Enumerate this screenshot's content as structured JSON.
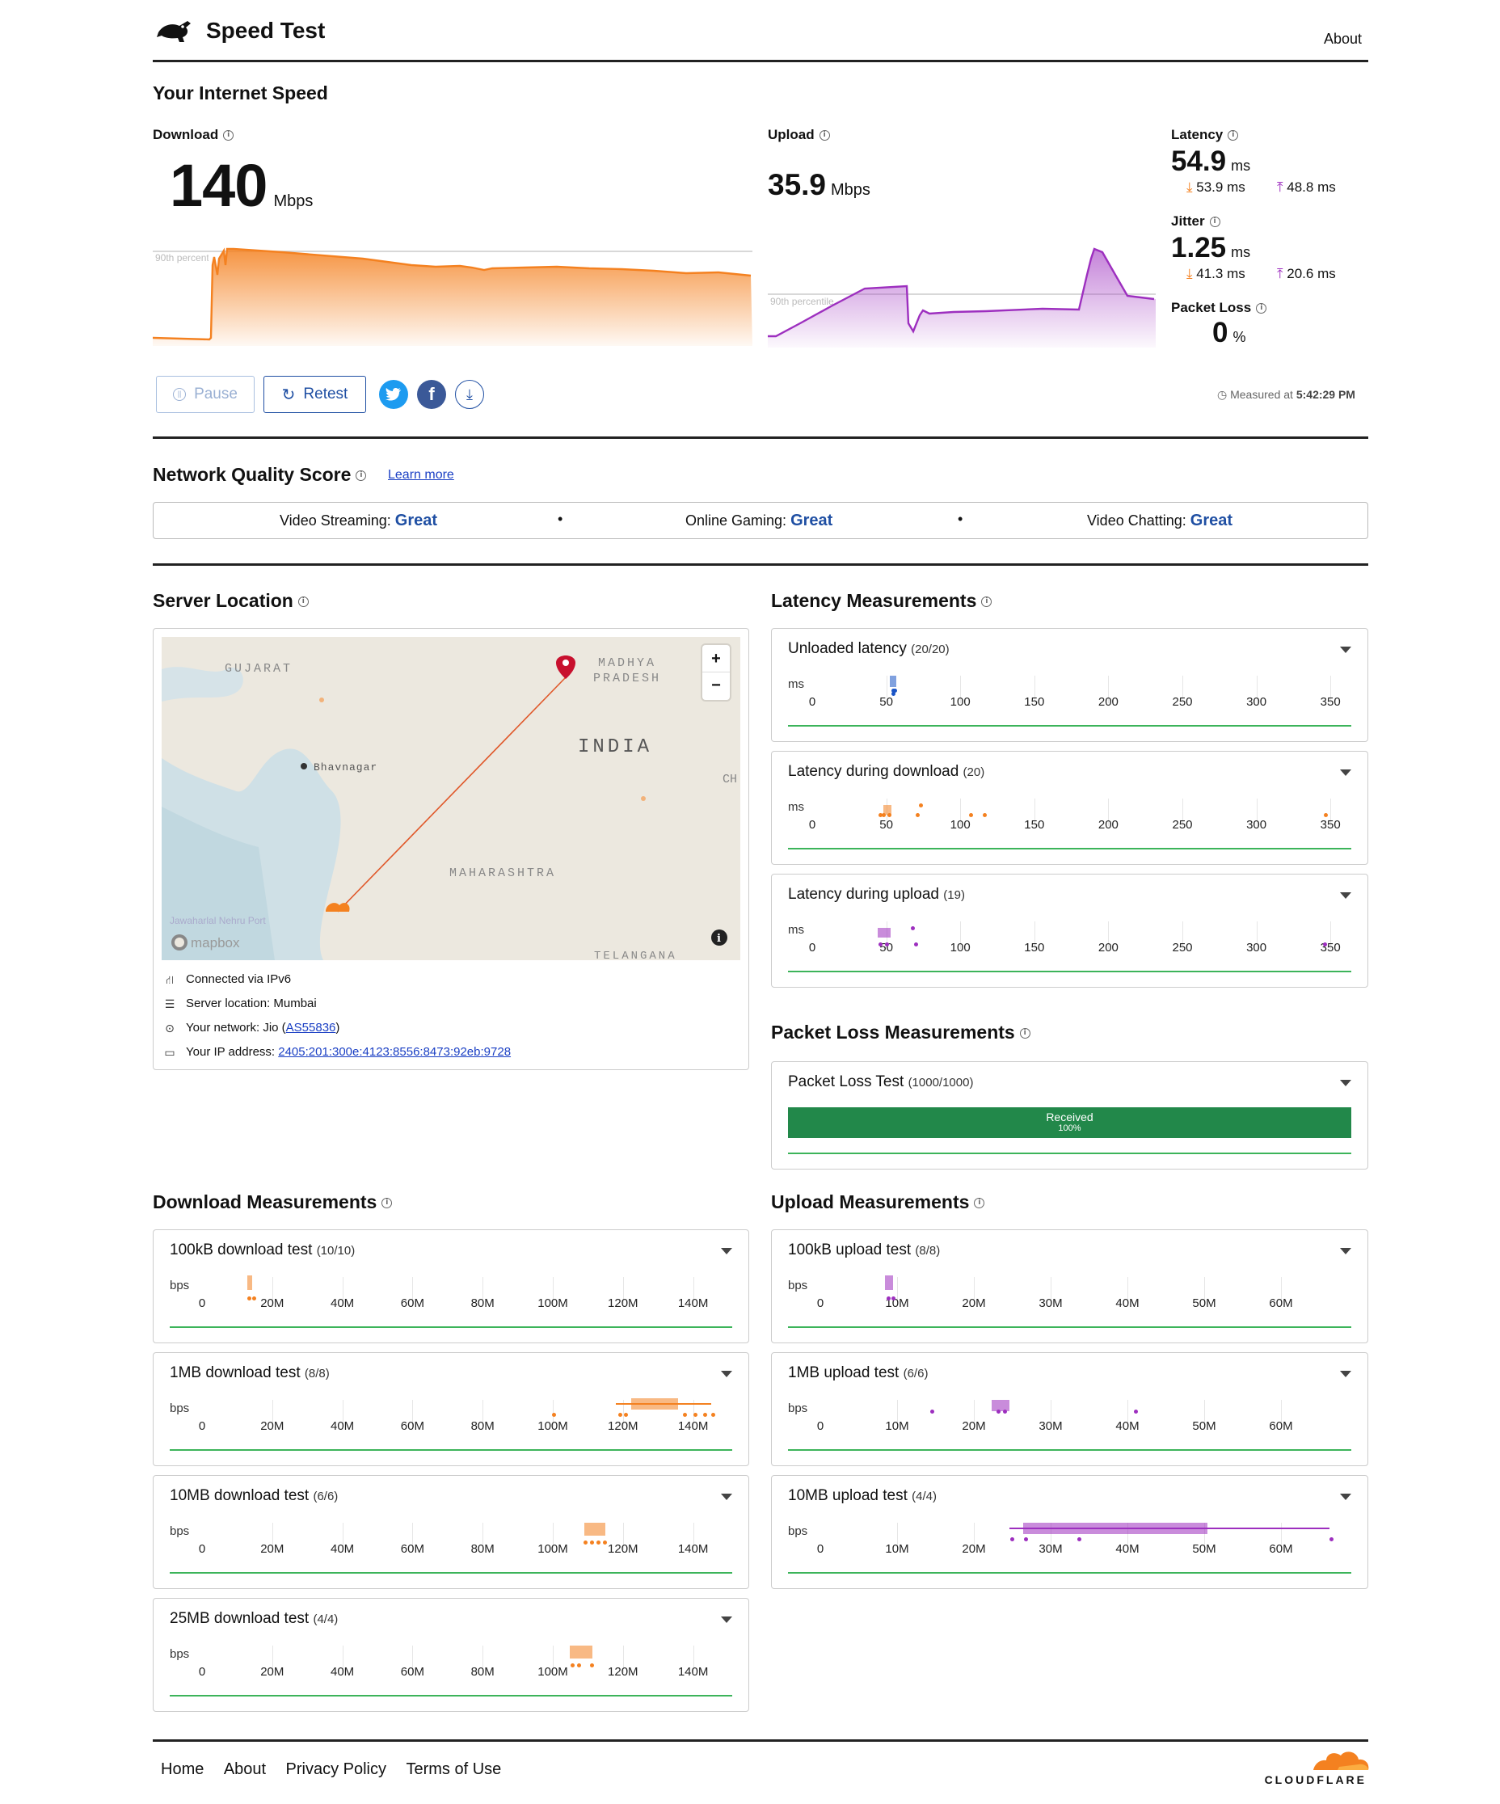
{
  "header": {
    "title": "Speed Test",
    "about": "About"
  },
  "speed": {
    "heading": "Your Internet Speed",
    "download": {
      "label": "Download",
      "value": "140",
      "unit": "Mbps",
      "percentile": "90th percentile"
    },
    "upload": {
      "label": "Upload",
      "value": "35.9",
      "unit": "Mbps",
      "percentile": "90th percentile"
    },
    "latency": {
      "label": "Latency",
      "value": "54.9",
      "unit": "ms",
      "down": "53.9",
      "down_unit": "ms",
      "up": "48.8",
      "up_unit": "ms"
    },
    "jitter": {
      "label": "Jitter",
      "value": "1.25",
      "unit": "ms",
      "down": "41.3",
      "down_unit": "ms",
      "up": "20.6",
      "up_unit": "ms"
    },
    "packet_loss": {
      "label": "Packet Loss",
      "value": "0",
      "unit": "%"
    },
    "measured_label": "Measured at",
    "measured_time": "5:42:29 PM",
    "buttons": {
      "pause": "Pause",
      "retest": "Retest"
    }
  },
  "nqs": {
    "heading": "Network Quality Score",
    "learn_more": "Learn more",
    "items": [
      {
        "label": "Video Streaming:",
        "value": "Great"
      },
      {
        "label": "Online Gaming:",
        "value": "Great"
      },
      {
        "label": "Video Chatting:",
        "value": "Great"
      }
    ]
  },
  "server": {
    "heading": "Server Location",
    "map_labels": {
      "gujarat": "GUJARAT",
      "madhya": "MADHYA",
      "pradesh": "PRADESH",
      "india": "INDIA",
      "bhavnagar": "Bhavnagar",
      "maharashtra": "MAHARASHTRA",
      "telangana": "TELANGANA",
      "ch": "CH",
      "mapbox": "mapbox",
      "jnport": "Jawaharlal Nehru Port",
      "plus": "+",
      "minus": "−"
    },
    "connected": "Connected via IPv6",
    "location": "Server location: Mumbai",
    "network_prefix": "Your network: Jio (",
    "network_as": "AS55836",
    "network_suffix": ")",
    "ip_prefix": "Your IP address: ",
    "ip": "2405:201:300e:4123:8556:8473:92eb:9728"
  },
  "latency_meas": {
    "heading": "Latency Measurements",
    "unit": "ms",
    "ticks": [
      "0",
      "50",
      "100",
      "150",
      "200",
      "250",
      "300",
      "350"
    ],
    "cards": [
      {
        "title": "Unloaded latency",
        "count": "(20/20)"
      },
      {
        "title": "Latency during download",
        "count": "(20)"
      },
      {
        "title": "Latency during upload",
        "count": "(19)"
      }
    ]
  },
  "packet_meas": {
    "heading": "Packet Loss Measurements",
    "title": "Packet Loss Test",
    "count": "(1000/1000)",
    "bar_label": "Received",
    "bar_pct": "100%",
    "received_fraction": 1.0
  },
  "download_meas": {
    "heading": "Download Measurements",
    "unit": "bps",
    "ticks": [
      "0",
      "20M",
      "40M",
      "60M",
      "80M",
      "100M",
      "120M",
      "140M"
    ],
    "cards": [
      {
        "title": "100kB download test",
        "count": "(10/10)"
      },
      {
        "title": "1MB download test",
        "count": "(8/8)"
      },
      {
        "title": "10MB download test",
        "count": "(6/6)"
      },
      {
        "title": "25MB download test",
        "count": "(4/4)"
      }
    ]
  },
  "upload_meas": {
    "heading": "Upload Measurements",
    "unit": "bps",
    "ticks": [
      "0",
      "10M",
      "20M",
      "30M",
      "40M",
      "50M",
      "60M"
    ],
    "cards": [
      {
        "title": "100kB upload test",
        "count": "(8/8)"
      },
      {
        "title": "1MB upload test",
        "count": "(6/6)"
      },
      {
        "title": "10MB upload test",
        "count": "(4/4)"
      }
    ]
  },
  "footer": {
    "links": [
      "Home",
      "About",
      "Privacy Policy",
      "Terms of Use"
    ],
    "brand": "CLOUDFLARE"
  },
  "colors": {
    "download": "#f48120",
    "upload": "#9d2fbf",
    "good": "#22884a",
    "link": "#1f4fa3"
  }
}
